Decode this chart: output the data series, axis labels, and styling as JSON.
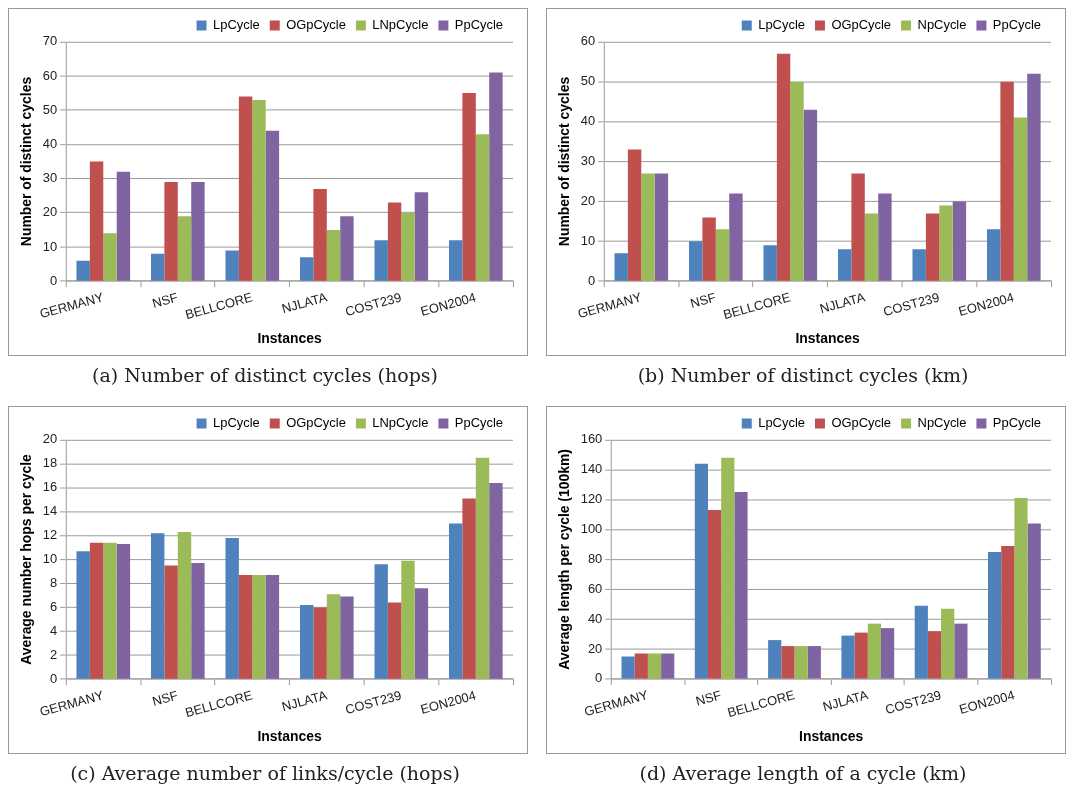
{
  "chart_data": [
    {
      "type": "bar",
      "xlabel": "Instances",
      "ylabel": "Number of distinct cycles",
      "categories": [
        "GERMANY",
        "NSF",
        "BELLCORE",
        "NJLATA",
        "COST239",
        "EON2004"
      ],
      "series": [
        {
          "name": "LpCycle",
          "color": "#4f81bd",
          "values": [
            6,
            8,
            9,
            7,
            12,
            12
          ]
        },
        {
          "name": "OGpCycle",
          "color": "#c0504d",
          "values": [
            35,
            29,
            54,
            27,
            23,
            55
          ]
        },
        {
          "name": "LNpCycle",
          "color": "#9bbb59",
          "values": [
            14,
            19,
            53,
            15,
            20,
            43
          ]
        },
        {
          "name": "PpCycle",
          "color": "#8064a2",
          "values": [
            32,
            29,
            44,
            19,
            26,
            61
          ]
        }
      ],
      "ylim": [
        0,
        70
      ],
      "yticks": [
        0,
        10,
        20,
        30,
        40,
        50,
        60,
        70
      ],
      "grid": "y",
      "legend": "top right",
      "annotations": [
        "(a)  Number of distinct cycles (hops)"
      ]
    },
    {
      "type": "bar",
      "xlabel": "Instances",
      "ylabel": "Number of distinct cycles",
      "categories": [
        "GERMANY",
        "NSF",
        "BELLCORE",
        "NJLATA",
        "COST239",
        "EON2004"
      ],
      "series": [
        {
          "name": "LpCycle",
          "color": "#4f81bd",
          "values": [
            7,
            10,
            9,
            8,
            8,
            13
          ]
        },
        {
          "name": "OGpCycle",
          "color": "#c0504d",
          "values": [
            33,
            16,
            57,
            27,
            17,
            50
          ]
        },
        {
          "name": "NpCycle",
          "color": "#9bbb59",
          "values": [
            27,
            13,
            50,
            17,
            19,
            41
          ]
        },
        {
          "name": "PpCycle",
          "color": "#8064a2",
          "values": [
            27,
            22,
            43,
            22,
            20,
            52
          ]
        }
      ],
      "ylim": [
        0,
        60
      ],
      "yticks": [
        0,
        10,
        20,
        30,
        40,
        50,
        60
      ],
      "grid": "y",
      "legend": "top right",
      "annotations": [
        "(b)  Number of distinct cycles (km)"
      ]
    },
    {
      "type": "bar",
      "xlabel": "Instances",
      "ylabel": "Average number hops per cycle",
      "categories": [
        "GERMANY",
        "NSF",
        "BELLCORE",
        "NJLATA",
        "COST239",
        "EON2004"
      ],
      "series": [
        {
          "name": "LpCycle",
          "color": "#4f81bd",
          "values": [
            10.7,
            12.2,
            11.8,
            6.2,
            9.6,
            13
          ]
        },
        {
          "name": "OGpCycle",
          "color": "#c0504d",
          "values": [
            11.4,
            9.5,
            8.7,
            6,
            6.4,
            15.1
          ]
        },
        {
          "name": "LNpCycle",
          "color": "#9bbb59",
          "values": [
            11.4,
            12.3,
            8.7,
            7.1,
            9.9,
            18.5
          ]
        },
        {
          "name": "PpCycle",
          "color": "#8064a2",
          "values": [
            11.3,
            9.7,
            8.7,
            6.9,
            7.6,
            16.4
          ]
        }
      ],
      "ylim": [
        0,
        20
      ],
      "yticks": [
        0,
        2,
        4,
        6,
        8,
        10,
        12,
        14,
        16,
        18,
        20
      ],
      "grid": "y",
      "legend": "top right",
      "annotations": [
        "(c)  Average number of links/cycle (hops)"
      ]
    },
    {
      "type": "bar",
      "xlabel": "Instances",
      "ylabel": "Average length per cycle (100km)",
      "categories": [
        "GERMANY",
        "NSF",
        "BELLCORE",
        "NJLATA",
        "COST239",
        "EON2004"
      ],
      "series": [
        {
          "name": "LpCycle",
          "color": "#4f81bd",
          "values": [
            15,
            144,
            26,
            29,
            49,
            85
          ]
        },
        {
          "name": "OGpCycle",
          "color": "#c0504d",
          "values": [
            17,
            113,
            22,
            31,
            32,
            89
          ]
        },
        {
          "name": "NpCycle",
          "color": "#9bbb59",
          "values": [
            17,
            148,
            22,
            37,
            47,
            121
          ]
        },
        {
          "name": "PpCycle",
          "color": "#8064a2",
          "values": [
            17,
            125,
            22,
            34,
            37,
            104
          ]
        }
      ],
      "ylim": [
        0,
        160
      ],
      "yticks": [
        0,
        20,
        40,
        60,
        80,
        100,
        120,
        140,
        160
      ],
      "grid": "y",
      "legend": "top right",
      "annotations": [
        "(d)  Average length of a cycle (km)"
      ]
    }
  ]
}
